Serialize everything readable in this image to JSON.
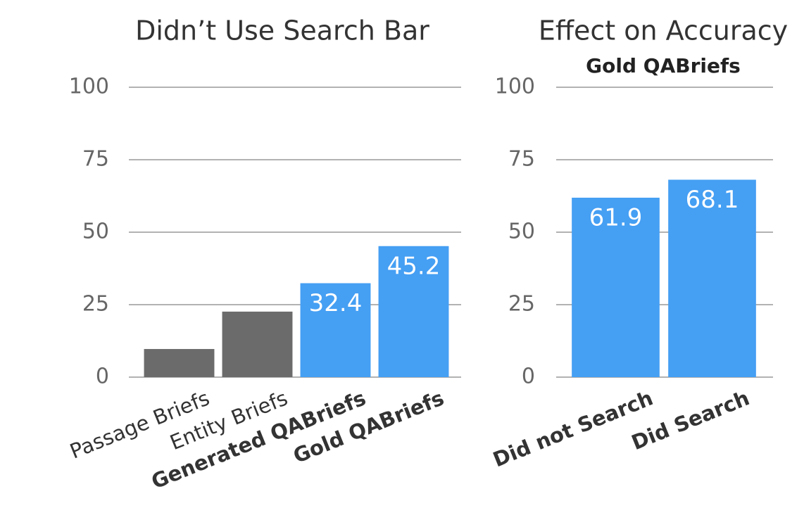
{
  "chart_data": [
    {
      "type": "bar",
      "title": "Didn’t Use Search Bar",
      "categories": [
        "Passage Briefs",
        "Entity Briefs",
        "Generated QABriefs",
        "Gold QABriefs"
      ],
      "values": [
        9.7,
        22.6,
        32.4,
        45.2
      ],
      "colors": [
        "#6b6b6b",
        "#6b6b6b",
        "#459ff3",
        "#459ff3"
      ],
      "labeled": [
        false,
        false,
        true,
        true
      ],
      "bold_categories": [
        false,
        false,
        true,
        true
      ],
      "ylim": [
        0,
        100
      ],
      "yticks": [
        0,
        25,
        50,
        75,
        100
      ],
      "grid": true
    },
    {
      "type": "bar",
      "title": "Effect on Accuracy",
      "subtitle": "Gold QABriefs",
      "categories": [
        "Did not Search",
        "Did Search"
      ],
      "values": [
        61.9,
        68.1
      ],
      "colors": [
        "#459ff3",
        "#459ff3"
      ],
      "labeled": [
        true,
        true
      ],
      "bold_categories": [
        true,
        true
      ],
      "ylim": [
        0,
        100
      ],
      "yticks": [
        0,
        25,
        50,
        75,
        100
      ],
      "grid": true
    }
  ]
}
